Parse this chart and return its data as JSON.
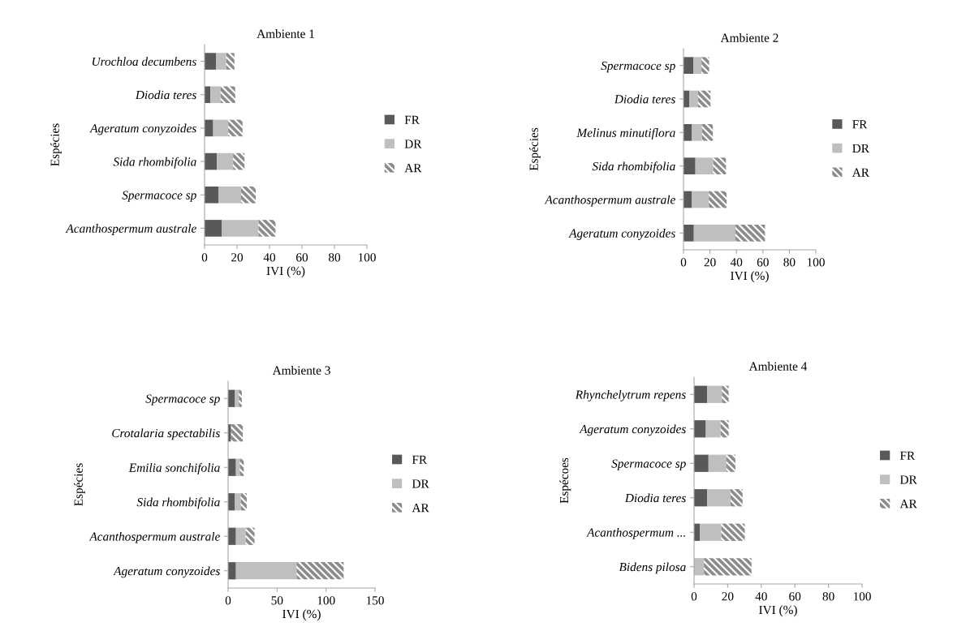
{
  "chart_data": [
    {
      "type": "bar",
      "orientation": "horizontal",
      "stacked": true,
      "title": "Ambiente 1",
      "xlabel": "IVI (%)",
      "ylabel": "Espécies",
      "legend": "right",
      "grid": false,
      "categories": [
        "Urochloa decumbens",
        "Diodia teres",
        "Ageratum conyzoides",
        "Sida rhombifolia",
        "Spermacoce sp",
        "Acanthospermum australe"
      ],
      "xlim": [
        0,
        100
      ],
      "xticks": [
        0,
        20,
        40,
        60,
        80,
        100
      ],
      "series": [
        {
          "name": "FR",
          "color": "#595959",
          "values": [
            7,
            3.6,
            5.3,
            7.6,
            8.5,
            10.7
          ]
        },
        {
          "name": "DR",
          "color": "#bfbfbf",
          "values": [
            6.3,
            6.3,
            9.3,
            10,
            14,
            22.5
          ]
        },
        {
          "name": "AR",
          "color": "#8c8c8c",
          "values": [
            5.1,
            9,
            8.8,
            7,
            9,
            10.5
          ]
        }
      ]
    },
    {
      "type": "bar",
      "orientation": "horizontal",
      "stacked": true,
      "title": "Ambiente 2",
      "xlabel": "IVI (%)",
      "ylabel": "Espécies",
      "legend": "right",
      "grid": false,
      "categories": [
        "Spermacoce sp",
        "Diodia teres",
        "Melinus minutiflora",
        "Sida rhombifolia",
        "Acanthospermum australe",
        "Ageratum conyzoides"
      ],
      "xlim": [
        0,
        100
      ],
      "xticks": [
        0,
        20,
        40,
        60,
        80,
        100
      ],
      "series": [
        {
          "name": "FR",
          "color": "#595959",
          "values": [
            7.4,
            4.3,
            6.4,
            9,
            6.4,
            7.8
          ]
        },
        {
          "name": "DR",
          "color": "#bfbfbf",
          "values": [
            6.2,
            6.6,
            7.6,
            13.4,
            12.8,
            31.5
          ]
        },
        {
          "name": "AR",
          "color": "#8c8c8c",
          "values": [
            5.8,
            9.5,
            8.2,
            9.7,
            13.4,
            22.3
          ]
        }
      ]
    },
    {
      "type": "bar",
      "orientation": "horizontal",
      "stacked": true,
      "title": "Ambiente 3",
      "xlabel": "IVI (%)",
      "ylabel": "Espécies",
      "legend": "right",
      "grid": false,
      "categories": [
        "Spermacoce sp",
        "Crotalaria spectabilis",
        "Emilia sonchifolia",
        "Sida rhombifolia",
        "Acanthospermum australe",
        "Ageratum conyzoides"
      ],
      "xlim": [
        0,
        150
      ],
      "xticks": [
        0,
        50,
        100,
        150
      ],
      "series": [
        {
          "name": "FR",
          "color": "#595959",
          "values": [
            7,
            3,
            8,
            7,
            8,
            8
          ]
        },
        {
          "name": "DR",
          "color": "#bfbfbf",
          "values": [
            4,
            null,
            4,
            6,
            10,
            62
          ]
        },
        {
          "name": "AR",
          "color": "#8c8c8c",
          "values": [
            3,
            12,
            4,
            6,
            9,
            48
          ]
        }
      ]
    },
    {
      "type": "bar",
      "orientation": "horizontal",
      "stacked": true,
      "title": "Ambiente 4",
      "xlabel": "IVI (%)",
      "ylabel": "Espécoes",
      "legend": "right",
      "grid": false,
      "categories": [
        "Rhynchelytrum repens",
        "Ageratum conyzoides",
        "Spermacoce sp",
        "Diodia teres",
        "Acanthospermum ...",
        "Bidens pilosa"
      ],
      "xlim": [
        0,
        100
      ],
      "xticks": [
        0,
        20,
        40,
        60,
        80,
        100
      ],
      "series": [
        {
          "name": "FR",
          "color": "#595959",
          "values": [
            7.8,
            7,
            8.6,
            7.8,
            3.4,
            0
          ]
        },
        {
          "name": "DR",
          "color": "#bfbfbf",
          "values": [
            8.8,
            8.8,
            10.7,
            13.9,
            12.8,
            5.9
          ]
        },
        {
          "name": "AR",
          "color": "#8c8c8c",
          "values": [
            4,
            4.8,
            5.3,
            7.2,
            14,
            28.3
          ]
        }
      ]
    }
  ]
}
